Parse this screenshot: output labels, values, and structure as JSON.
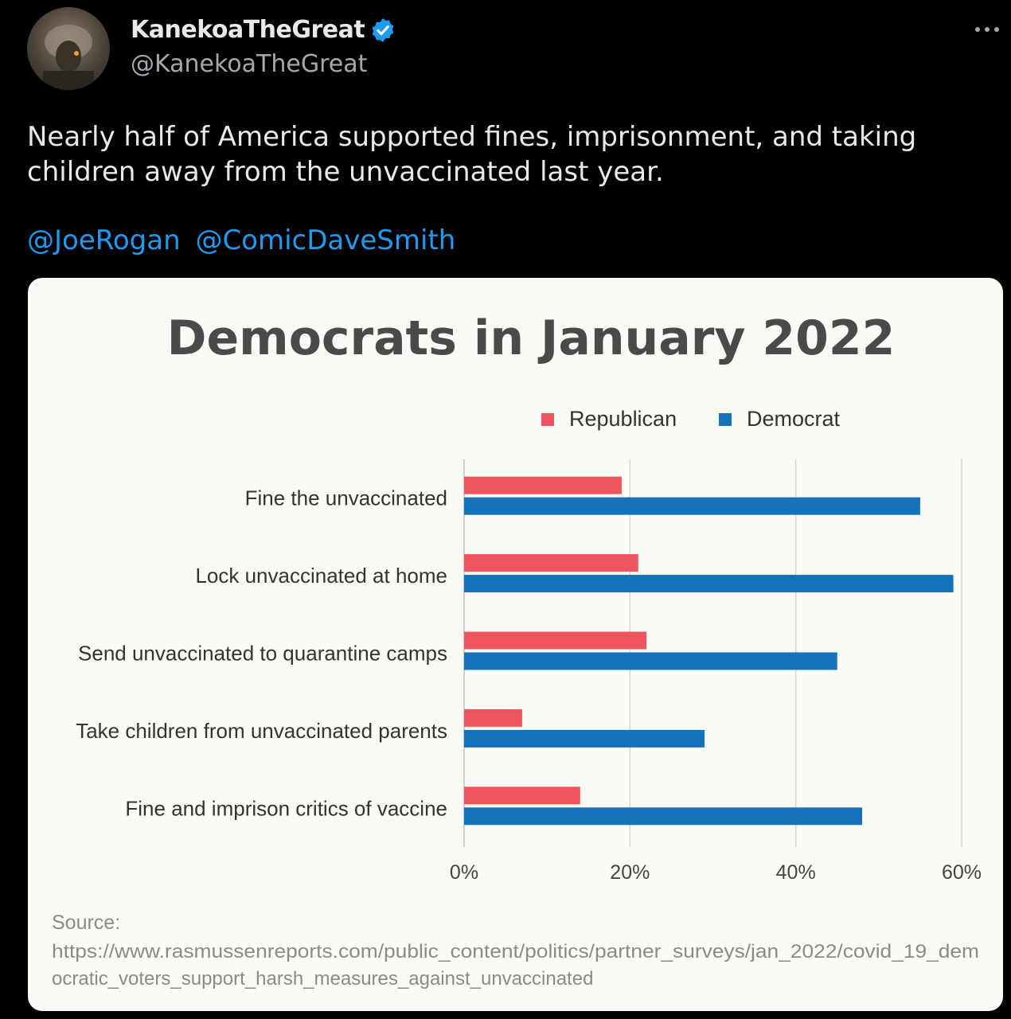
{
  "user": {
    "display_name": "KanekoaTheGreat",
    "handle": "@KanekoaTheGreat"
  },
  "tweet": {
    "text": "Nearly half of America supported fines, imprisonment, and taking children away from the unvaccinated last year.",
    "mentions": [
      "@JoeRogan",
      "@ComicDaveSmith"
    ]
  },
  "icons": {
    "verified": "verified-badge-icon",
    "more": "more-options-icon"
  },
  "colors": {
    "mention": "#1d9bf0",
    "republican": "#f0545d",
    "democrat": "#1372b8"
  },
  "chart_data": {
    "type": "bar",
    "orientation": "horizontal",
    "title": "Democrats in January 2022",
    "categories": [
      "Fine the unvaccinated",
      "Lock unvaccinated at home",
      "Send unvaccinated to quarantine camps",
      "Take children from unvaccinated parents",
      "Fine and imprison critics of vaccine"
    ],
    "series": [
      {
        "name": "Republican",
        "color": "#f0545d",
        "values": [
          19,
          21,
          22,
          7,
          14
        ]
      },
      {
        "name": "Democrat",
        "color": "#1372b8",
        "values": [
          55,
          59,
          45,
          29,
          48
        ]
      }
    ],
    "xlim": [
      0,
      60
    ],
    "xticks": [
      0,
      20,
      40,
      60
    ],
    "tick_labels": [
      "0%",
      "20%",
      "40%",
      "60%"
    ],
    "grid": true,
    "legend": "top",
    "source_label": "Source:",
    "source_lines": [
      "https://www.rasmussenreports.com/public_content/politics/partner_surveys/jan_2022/covid_19_dem",
      "ocratic_voters_support_harsh_measures_against_unvaccinated"
    ]
  }
}
